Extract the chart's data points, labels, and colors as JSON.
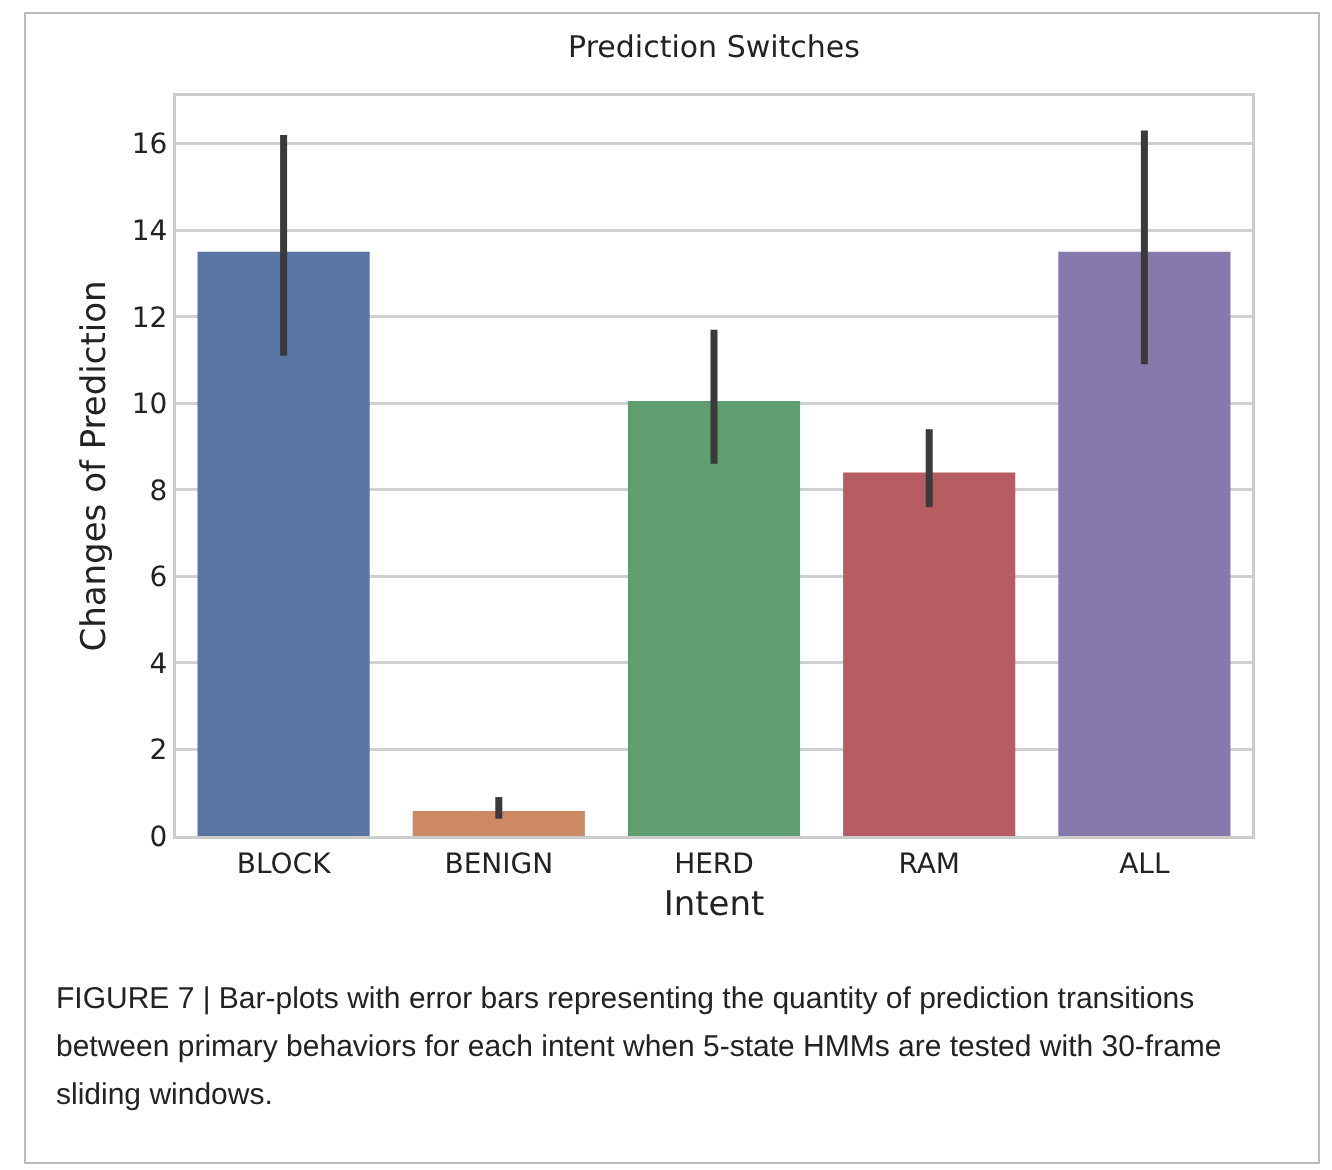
{
  "chart_data": {
    "type": "bar",
    "title": "Prediction Switches",
    "xlabel": "Intent",
    "ylabel": "Changes of Prediction",
    "categories": [
      "BLOCK",
      "BENIGN",
      "HERD",
      "RAM",
      "ALL"
    ],
    "values": [
      13.5,
      0.58,
      10.05,
      8.4,
      13.5
    ],
    "colors": [
      "#5875a4",
      "#cc8963",
      "#5f9e6e",
      "#b55d60",
      "#857aab"
    ],
    "errors": [
      [
        11.1,
        16.2
      ],
      [
        0.4,
        0.9
      ],
      [
        8.6,
        11.7
      ],
      [
        7.6,
        9.4
      ],
      [
        10.9,
        16.3
      ]
    ],
    "ylim": [
      0,
      17.1
    ],
    "yticks": [
      0,
      2,
      4,
      6,
      8,
      10,
      12,
      14,
      16
    ],
    "grid": "y",
    "annotations": [
      "FIGURE 7 | Bar-plots with error bars representing the quantity of prediction transitions between primary behaviors for each intent when 5-state HMMs are tested with 30-frame sliding windows."
    ]
  }
}
